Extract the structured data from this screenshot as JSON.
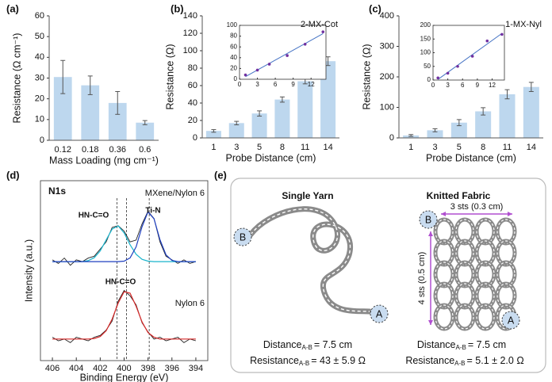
{
  "chart_data": [
    {
      "type": "bar",
      "panel": "(a)",
      "categories": [
        "0.12",
        "0.18",
        "0.36",
        "0.6"
      ],
      "values": [
        30.5,
        26.5,
        18,
        8.5
      ],
      "errors": [
        8,
        4.5,
        5.5,
        1
      ],
      "color": "#bdd7ee",
      "ylim": [
        0,
        60
      ],
      "yticks": [
        0,
        10,
        20,
        30,
        40,
        50,
        60
      ],
      "ylabel": "Resistance (Ω cm⁻¹)",
      "xlabel": "Mass Loading (mg cm⁻¹)",
      "grid": false
    },
    {
      "type": "bar",
      "panel": "(b)",
      "categories": [
        "1",
        "3",
        "5",
        "8",
        "11",
        "14"
      ],
      "values": [
        8,
        17,
        28,
        44,
        65,
        88
      ],
      "errors": [
        1.5,
        2,
        3,
        3,
        3,
        5
      ],
      "color": "#bdd7ee",
      "ylim": [
        0,
        140
      ],
      "yticks": [
        0,
        20,
        40,
        60,
        80,
        100,
        120,
        140
      ],
      "ylabel": "Resistance (Ω)",
      "xlabel": "Probe Distance (cm)",
      "grid": false
    },
    {
      "type": "scatter",
      "annotation": "2-MX-Cot",
      "x": [
        1,
        3,
        5,
        8,
        11,
        14
      ],
      "values": [
        8,
        17,
        28,
        44,
        65,
        88
      ],
      "color": "#7030a0",
      "xlim": [
        0,
        14.5
      ],
      "xticks": [
        0,
        3,
        6,
        9,
        12
      ],
      "ylim": [
        0,
        100
      ],
      "yticks": [
        0,
        20,
        40,
        60,
        80,
        100
      ]
    },
    {
      "type": "bar",
      "panel": "(c)",
      "categories": [
        "1",
        "3",
        "5",
        "8",
        "11",
        "14"
      ],
      "values": [
        8,
        25,
        50,
        87,
        143,
        167
      ],
      "errors": [
        3,
        5,
        10,
        12,
        15,
        15
      ],
      "color": "#bdd7ee",
      "ylim": [
        0,
        400
      ],
      "yticks": [
        0,
        100,
        200,
        300,
        400
      ],
      "ylabel": "Resistance (Ω)",
      "xlabel": "Probe Distance (cm)",
      "grid": false
    },
    {
      "type": "scatter",
      "annotation": "1-MX-Nyl",
      "x": [
        1,
        3,
        5,
        8,
        11,
        14
      ],
      "values": [
        8,
        25,
        50,
        87,
        143,
        167
      ],
      "color": "#7030a0",
      "xlim": [
        0,
        14.5
      ],
      "xticks": [
        0,
        3,
        6,
        9,
        12
      ],
      "ylim": [
        0,
        200
      ],
      "yticks": [
        0,
        50,
        100,
        150,
        200
      ]
    },
    {
      "type": "line",
      "panel": "(d)",
      "annotation": "N1s",
      "ylabel": "Intensity (a.u.)",
      "xlabel": "Binding Energy (eV)",
      "xlim": [
        407,
        393
      ],
      "xticks": [
        406,
        404,
        402,
        400,
        398,
        396,
        394
      ],
      "ylim": [
        0,
        10
      ],
      "peaks": [
        400.6,
        397.9,
        399.8
      ],
      "x": [
        406,
        405.5,
        405,
        404.5,
        404,
        403.5,
        403,
        402.5,
        402,
        401.5,
        401,
        400.5,
        400,
        399.5,
        399,
        398.5,
        398,
        397.5,
        397,
        396.5,
        396,
        395.5,
        395,
        394.5,
        394
      ],
      "series": [
        {
          "name": "MXene/Nylon 6",
          "color": "#222222",
          "values": [
            5.6,
            5.4,
            5.7,
            5.3,
            5.6,
            5.5,
            5.7,
            5.8,
            6.2,
            6.6,
            7.4,
            7.5,
            7.2,
            6.6,
            6.7,
            7.6,
            8.3,
            7.9,
            6.6,
            5.8,
            5.6,
            5.4,
            5.6,
            5.4,
            5.5
          ]
        },
        {
          "name": "HN-C=O",
          "color": "#19b4cc",
          "values": [
            5.5,
            5.5,
            5.5,
            5.5,
            5.5,
            5.5,
            5.56,
            5.72,
            6.1,
            6.71,
            7.31,
            7.49,
            7.1,
            6.44,
            5.91,
            5.63,
            5.53,
            5.5,
            5.5,
            5.5,
            5.5,
            5.5,
            5.5,
            5.5,
            5.5
          ]
        },
        {
          "name": "Ti-N",
          "color": "#1f3fbf",
          "values": [
            5.5,
            5.5,
            5.5,
            5.5,
            5.5,
            5.5,
            5.5,
            5.5,
            5.5,
            5.5,
            5.5,
            5.5,
            5.53,
            5.71,
            6.32,
            7.44,
            8.27,
            7.88,
            6.72,
            5.88,
            5.57,
            5.5,
            5.5,
            5.5,
            5.5
          ]
        },
        {
          "name": "Nylon 6",
          "color": "#222222",
          "values": [
            1.3,
            1.1,
            1.2,
            1.0,
            1.3,
            1.2,
            1.1,
            1.3,
            1.4,
            1.7,
            2.2,
            3.3,
            3.9,
            3.6,
            3.1,
            2.1,
            1.6,
            1.2,
            1.3,
            1.1,
            1.2,
            1.3,
            1.0,
            1.2,
            1.1
          ]
        },
        {
          "name": "HN-C=O",
          "color": "#d62828",
          "values": [
            1.2,
            1.2,
            1.2,
            1.2,
            1.2,
            1.2,
            1.2,
            1.23,
            1.34,
            1.66,
            2.31,
            3.2,
            3.83,
            3.75,
            3.02,
            2.15,
            1.56,
            1.3,
            1.2,
            1.2,
            1.2,
            1.2,
            1.2,
            1.2,
            1.2
          ]
        }
      ]
    }
  ],
  "panel_e": {
    "label": "(e)",
    "single_yarn": {
      "title": "Single Yarn",
      "end_a": "A",
      "end_b": "B",
      "distance": {
        "name": "Distance",
        "sub": "A-B",
        "text": "= 7.5 cm"
      },
      "resistance": {
        "name": "Resistance",
        "sub": "A-B",
        "text": "= 43 ± 5.9 Ω"
      }
    },
    "knitted_fabric": {
      "title": "Knitted Fabric",
      "end_a": "A",
      "end_b": "B",
      "width": "3 sts (0.3 cm)",
      "height": "4 sts (0.5 cm)",
      "distance": {
        "name": "Distance",
        "sub": "A-B",
        "text": "= 7.5 cm"
      },
      "resistance": {
        "name": "Resistance",
        "sub": "A-B",
        "text": "= 5.1 ± 2.0 Ω"
      }
    }
  }
}
